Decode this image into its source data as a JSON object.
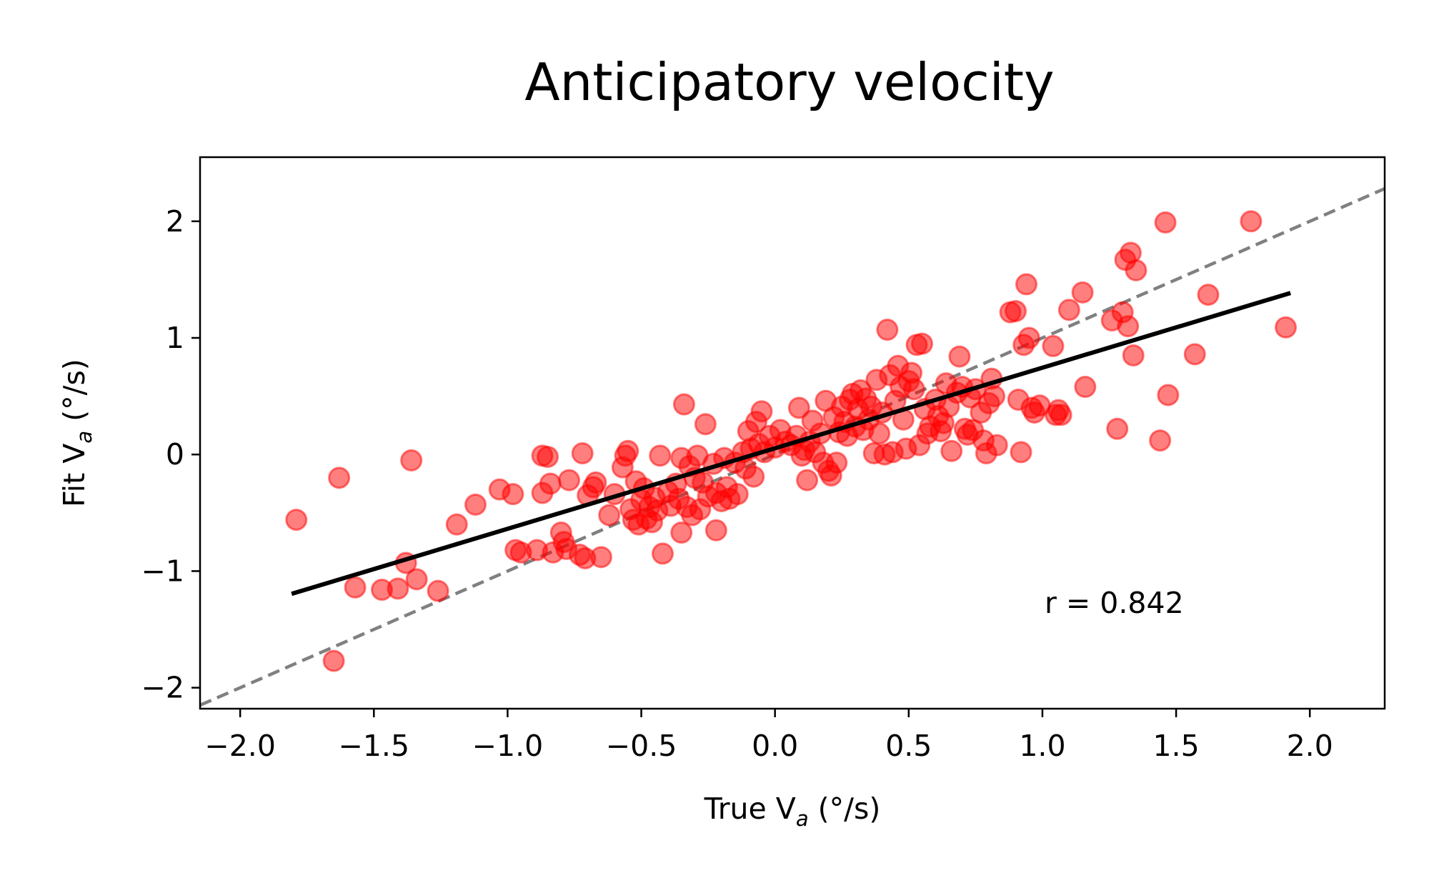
{
  "chart_data": {
    "type": "scatter",
    "title": "Anticipatory velocity",
    "xlabel": {
      "main": "True V",
      "sub": "a",
      "unit": " (°/s)"
    },
    "ylabel": {
      "main": "Fit V",
      "sub": "a",
      "unit": " (°/s)"
    },
    "xlim": [
      -2.15,
      2.28
    ],
    "ylim": [
      -2.18,
      2.55
    ],
    "xticks": [
      -2.0,
      -1.5,
      -1.0,
      -0.5,
      0.0,
      0.5,
      1.0,
      1.5,
      2.0
    ],
    "xtick_labels": [
      "−2.0",
      "−1.5",
      "−1.0",
      "−0.5",
      "0.0",
      "0.5",
      "1.0",
      "1.5",
      "2.0"
    ],
    "yticks": [
      -2,
      -1,
      0,
      1,
      2
    ],
    "ytick_labels": [
      "−2",
      "−1",
      "0",
      "1",
      "2"
    ],
    "grid": false,
    "annotation": "r = 0.842",
    "colors": {
      "points": "#ff0000",
      "fit_line": "#000000",
      "identity_line": "#808080"
    },
    "identity_line": {
      "style": "dashed",
      "slope": 1,
      "intercept": 0
    },
    "fit_line": {
      "style": "solid",
      "x": [
        -1.8,
        1.92
      ],
      "y": [
        -1.19,
        1.38
      ]
    },
    "series": [
      {
        "points": [
          [
            -1.79,
            -0.56
          ],
          [
            -1.65,
            -1.77
          ],
          [
            -1.63,
            -0.2
          ],
          [
            -1.57,
            -1.14
          ],
          [
            -1.47,
            -1.16
          ],
          [
            -1.41,
            -1.15
          ],
          [
            -1.38,
            -0.93
          ],
          [
            -1.36,
            -0.05
          ],
          [
            -1.34,
            -1.07
          ],
          [
            -1.26,
            -1.17
          ],
          [
            -1.19,
            -0.6
          ],
          [
            -1.12,
            -0.43
          ],
          [
            -1.03,
            -0.3
          ],
          [
            -0.98,
            -0.34
          ],
          [
            -0.97,
            -0.82
          ],
          [
            -0.95,
            -0.84
          ],
          [
            -0.89,
            -0.82
          ],
          [
            -0.87,
            -0.33
          ],
          [
            -0.87,
            -0.01
          ],
          [
            -0.85,
            -0.02
          ],
          [
            -0.84,
            -0.25
          ],
          [
            -0.83,
            -0.84
          ],
          [
            -0.8,
            -0.67
          ],
          [
            -0.79,
            -0.75
          ],
          [
            -0.78,
            -0.81
          ],
          [
            -0.77,
            -0.22
          ],
          [
            -0.73,
            -0.86
          ],
          [
            -0.72,
            0.01
          ],
          [
            -0.71,
            -0.89
          ],
          [
            -0.7,
            -0.35
          ],
          [
            -0.68,
            -0.28
          ],
          [
            -0.67,
            -0.24
          ],
          [
            -0.65,
            -0.88
          ],
          [
            -0.62,
            -0.52
          ],
          [
            -0.6,
            -0.34
          ],
          [
            -0.57,
            -0.11
          ],
          [
            -0.56,
            -0.01
          ],
          [
            -0.55,
            0.03
          ],
          [
            -0.54,
            -0.47
          ],
          [
            -0.53,
            -0.56
          ],
          [
            -0.52,
            -0.23
          ],
          [
            -0.51,
            -0.6
          ],
          [
            -0.5,
            -0.39
          ],
          [
            -0.49,
            -0.29
          ],
          [
            -0.48,
            -0.55
          ],
          [
            -0.47,
            -0.45
          ],
          [
            -0.46,
            -0.58
          ],
          [
            -0.45,
            -0.37
          ],
          [
            -0.44,
            -0.48
          ],
          [
            -0.43,
            -0.01
          ],
          [
            -0.42,
            -0.85
          ],
          [
            -0.4,
            -0.32
          ],
          [
            -0.39,
            -0.44
          ],
          [
            -0.37,
            -0.25
          ],
          [
            -0.36,
            -0.38
          ],
          [
            -0.35,
            -0.03
          ],
          [
            -0.35,
            -0.67
          ],
          [
            -0.34,
            0.43
          ],
          [
            -0.33,
            -0.45
          ],
          [
            -0.32,
            -0.1
          ],
          [
            -0.31,
            -0.52
          ],
          [
            -0.3,
            -0.2
          ],
          [
            -0.29,
            -0.01
          ],
          [
            -0.28,
            -0.47
          ],
          [
            -0.27,
            -0.24
          ],
          [
            -0.26,
            0.26
          ],
          [
            -0.25,
            -0.36
          ],
          [
            -0.23,
            -0.08
          ],
          [
            -0.22,
            -0.33
          ],
          [
            -0.22,
            -0.65
          ],
          [
            -0.2,
            -0.4
          ],
          [
            -0.19,
            -0.03
          ],
          [
            -0.18,
            -0.28
          ],
          [
            -0.17,
            -0.38
          ],
          [
            -0.15,
            -0.07
          ],
          [
            -0.14,
            -0.34
          ],
          [
            -0.12,
            0.02
          ],
          [
            -0.11,
            -0.12
          ],
          [
            -0.1,
            0.2
          ],
          [
            -0.09,
            0.05
          ],
          [
            -0.08,
            -0.19
          ],
          [
            -0.07,
            0.28
          ],
          [
            -0.06,
            0.09
          ],
          [
            -0.05,
            0.37
          ],
          [
            -0.04,
            0.02
          ],
          [
            -0.02,
            0.16
          ],
          [
            0.0,
            0.06
          ],
          [
            0.02,
            0.21
          ],
          [
            0.04,
            0.11
          ],
          [
            0.06,
            0.08
          ],
          [
            0.08,
            0.16
          ],
          [
            0.09,
            0.4
          ],
          [
            0.1,
            -0.01
          ],
          [
            0.11,
            0.04
          ],
          [
            0.12,
            -0.22
          ],
          [
            0.13,
            0.11
          ],
          [
            0.14,
            0.29
          ],
          [
            0.15,
            0.02
          ],
          [
            0.17,
            0.18
          ],
          [
            0.18,
            -0.07
          ],
          [
            0.19,
            0.46
          ],
          [
            0.2,
            -0.14
          ],
          [
            0.21,
            -0.18
          ],
          [
            0.22,
            0.32
          ],
          [
            0.23,
            -0.07
          ],
          [
            0.24,
            0.19
          ],
          [
            0.25,
            0.41
          ],
          [
            0.26,
            0.28
          ],
          [
            0.27,
            0.16
          ],
          [
            0.28,
            0.47
          ],
          [
            0.29,
            0.52
          ],
          [
            0.3,
            0.24
          ],
          [
            0.31,
            0.39
          ],
          [
            0.32,
            0.55
          ],
          [
            0.33,
            0.21
          ],
          [
            0.34,
            0.48
          ],
          [
            0.35,
            0.3
          ],
          [
            0.36,
            0.41
          ],
          [
            0.37,
            0.01
          ],
          [
            0.38,
            0.64
          ],
          [
            0.39,
            0.18
          ],
          [
            0.4,
            0.36
          ],
          [
            0.41,
            0.0
          ],
          [
            0.42,
            1.07
          ],
          [
            0.43,
            0.68
          ],
          [
            0.44,
            0.02
          ],
          [
            0.45,
            0.46
          ],
          [
            0.46,
            0.76
          ],
          [
            0.47,
            0.58
          ],
          [
            0.48,
            0.3
          ],
          [
            0.49,
            0.05
          ],
          [
            0.5,
            0.63
          ],
          [
            0.51,
            0.7
          ],
          [
            0.52,
            0.56
          ],
          [
            0.53,
            0.94
          ],
          [
            0.54,
            0.08
          ],
          [
            0.55,
            0.95
          ],
          [
            0.56,
            0.39
          ],
          [
            0.57,
            0.18
          ],
          [
            0.58,
            0.24
          ],
          [
            0.6,
            0.47
          ],
          [
            0.61,
            0.33
          ],
          [
            0.62,
            0.2
          ],
          [
            0.63,
            0.27
          ],
          [
            0.64,
            0.61
          ],
          [
            0.65,
            0.41
          ],
          [
            0.66,
            0.03
          ],
          [
            0.68,
            0.53
          ],
          [
            0.69,
            0.84
          ],
          [
            0.7,
            0.58
          ],
          [
            0.71,
            0.22
          ],
          [
            0.72,
            0.17
          ],
          [
            0.73,
            0.49
          ],
          [
            0.74,
            0.21
          ],
          [
            0.75,
            0.56
          ],
          [
            0.77,
            0.36
          ],
          [
            0.78,
            0.12
          ],
          [
            0.79,
            0.01
          ],
          [
            0.8,
            0.44
          ],
          [
            0.81,
            0.65
          ],
          [
            0.82,
            0.5
          ],
          [
            0.83,
            0.08
          ],
          [
            0.88,
            1.22
          ],
          [
            0.9,
            1.23
          ],
          [
            0.91,
            0.47
          ],
          [
            0.92,
            0.02
          ],
          [
            0.93,
            0.94
          ],
          [
            0.94,
            1.46
          ],
          [
            0.95,
            1.0
          ],
          [
            0.96,
            0.4
          ],
          [
            0.97,
            0.36
          ],
          [
            0.99,
            0.42
          ],
          [
            1.04,
            0.93
          ],
          [
            1.05,
            0.34
          ],
          [
            1.06,
            0.38
          ],
          [
            1.07,
            0.34
          ],
          [
            1.1,
            1.24
          ],
          [
            1.15,
            1.39
          ],
          [
            1.16,
            0.58
          ],
          [
            1.26,
            1.15
          ],
          [
            1.28,
            0.22
          ],
          [
            1.3,
            1.22
          ],
          [
            1.31,
            1.67
          ],
          [
            1.32,
            1.1
          ],
          [
            1.33,
            1.73
          ],
          [
            1.34,
            0.85
          ],
          [
            1.35,
            1.58
          ],
          [
            1.44,
            0.12
          ],
          [
            1.46,
            1.99
          ],
          [
            1.47,
            0.51
          ],
          [
            1.57,
            0.86
          ],
          [
            1.62,
            1.37
          ],
          [
            1.78,
            2.0
          ],
          [
            1.91,
            1.09
          ]
        ]
      }
    ]
  }
}
